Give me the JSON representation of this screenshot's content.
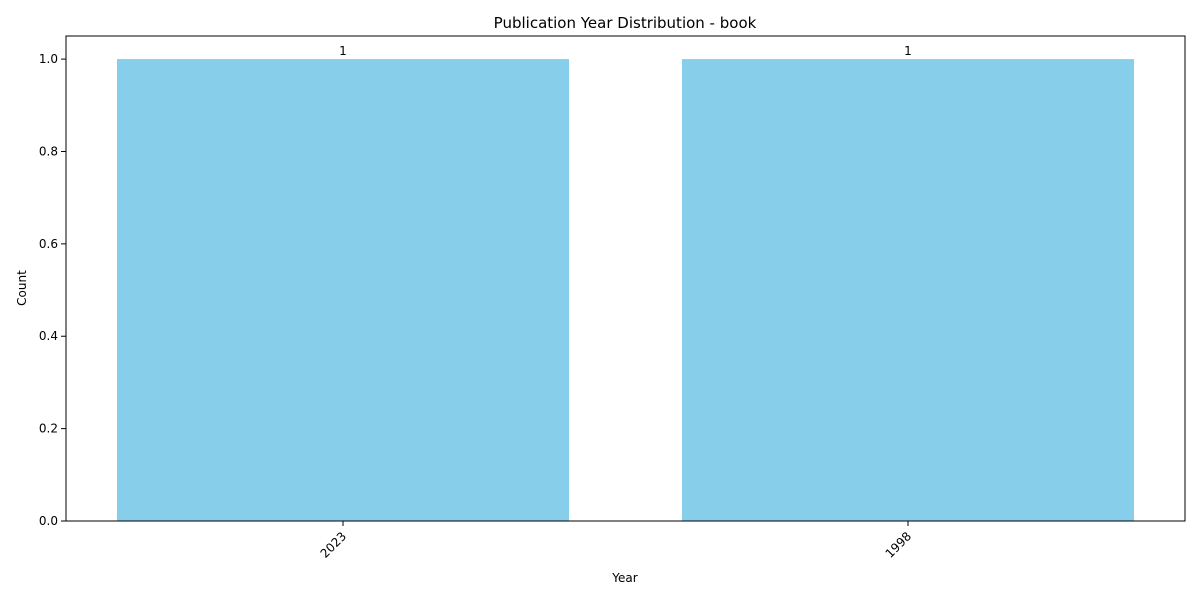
{
  "chart_data": {
    "type": "bar",
    "title": "Publication Year Distribution - book",
    "xlabel": "Year",
    "ylabel": "Count",
    "categories": [
      "2023",
      "1998"
    ],
    "values": [
      1,
      1
    ],
    "data_labels": [
      "1",
      "1"
    ],
    "ylim": [
      0,
      1.05
    ],
    "yticks": [
      0.0,
      0.2,
      0.4,
      0.6,
      0.8,
      1.0
    ],
    "ytick_labels": [
      "0.0",
      "0.2",
      "0.4",
      "0.6",
      "0.8",
      "1.0"
    ],
    "xtick_rotation_deg": 45,
    "grid": false,
    "legend": "none",
    "bar_color": "#87ceeb"
  }
}
